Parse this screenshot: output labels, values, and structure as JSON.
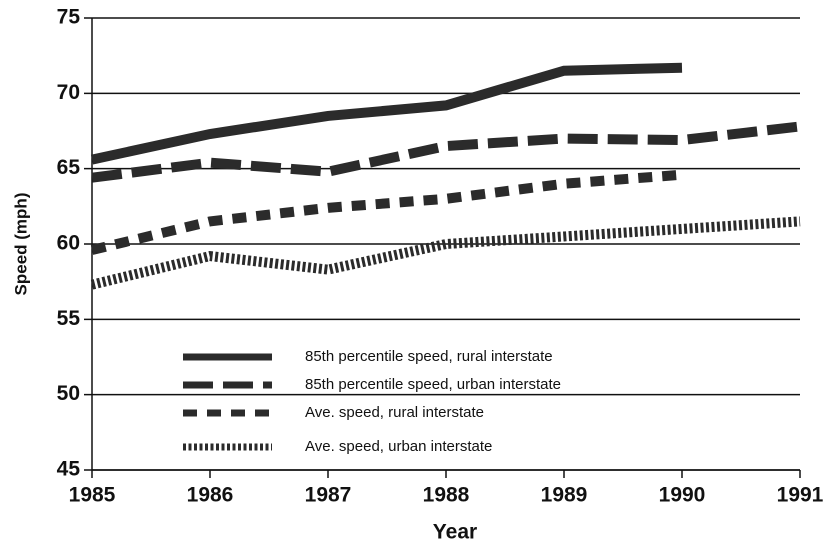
{
  "chart_data": {
    "type": "line",
    "x": [
      1985,
      1986,
      1987,
      1988,
      1989,
      1990,
      1991
    ],
    "xlabel": "Year",
    "ylabel": "Speed (mph)",
    "xlim": [
      1985,
      1991
    ],
    "xticks": [
      1985,
      1986,
      1987,
      1988,
      1989,
      1990,
      1991
    ],
    "ylim": [
      45,
      75
    ],
    "yticks": [
      45,
      50,
      55,
      60,
      65,
      70,
      75
    ],
    "grid": true,
    "series": [
      {
        "name": "85th percentile speed, rural interstate",
        "color": "#2b2b2b",
        "dash": "solid",
        "values": [
          65.6,
          67.3,
          68.5,
          69.2,
          71.5,
          71.7,
          null
        ]
      },
      {
        "name": "85th percentile speed, urban interstate",
        "color": "#2b2b2b",
        "dash": "long",
        "values": [
          64.4,
          65.4,
          64.8,
          66.5,
          67.0,
          66.9,
          67.8
        ]
      },
      {
        "name": "Ave. speed, rural interstate",
        "color": "#2b2b2b",
        "dash": "short",
        "values": [
          59.6,
          61.5,
          62.4,
          63.0,
          64.0,
          64.6,
          null
        ]
      },
      {
        "name": "Ave. speed, urban interstate",
        "color": "#2b2b2b",
        "dash": "dotted",
        "values": [
          57.3,
          59.2,
          58.3,
          60.0,
          60.5,
          61.0,
          61.5
        ]
      }
    ]
  }
}
